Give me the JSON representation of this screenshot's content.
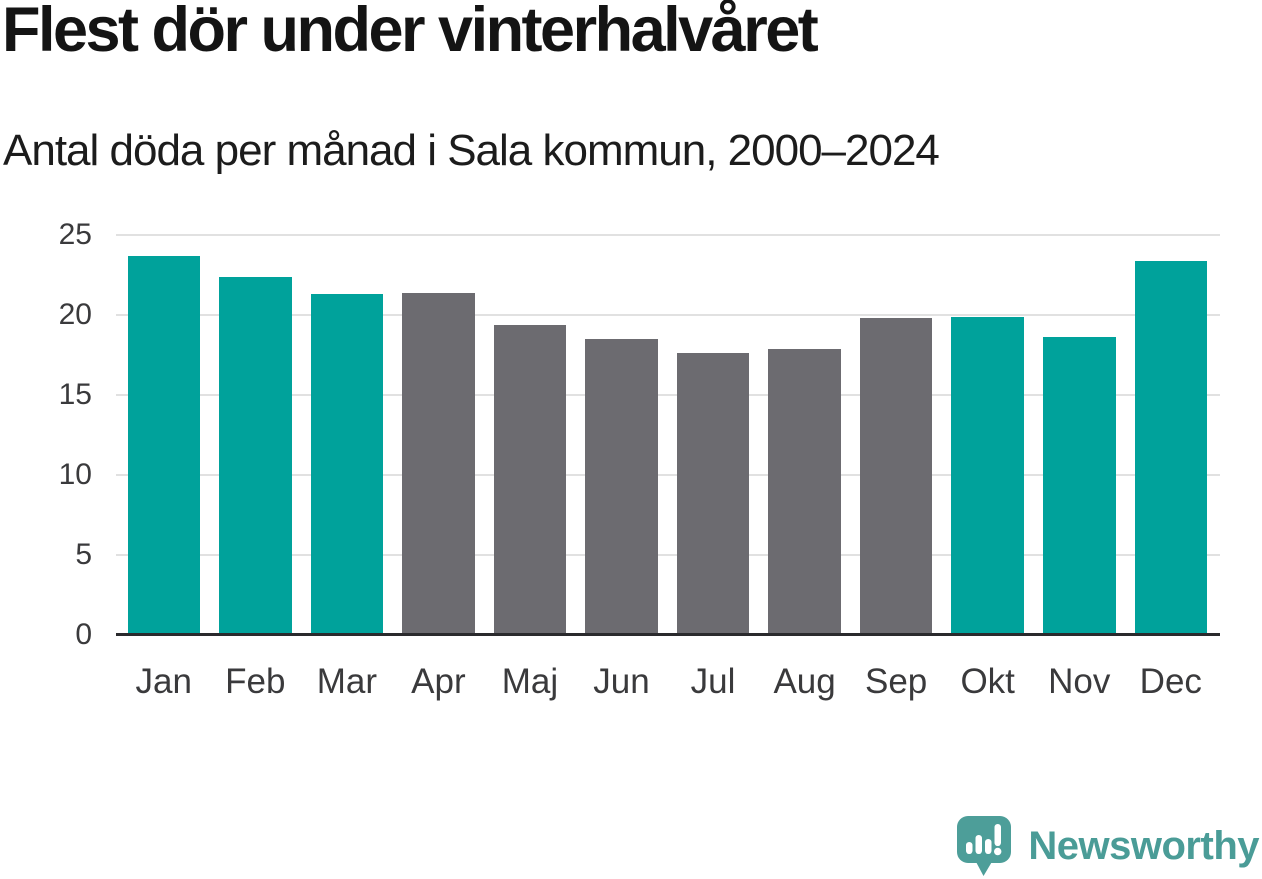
{
  "title": "Flest dör under vinterhalvåret",
  "subtitle": "Antal döda per månad i Sala kommun, 2000–2024",
  "chart_data": {
    "type": "bar",
    "title": "Flest dör under vinterhalvåret",
    "subtitle": "Antal döda per månad i Sala kommun, 2000–2024",
    "categories": [
      "Jan",
      "Feb",
      "Mar",
      "Apr",
      "Maj",
      "Jun",
      "Jul",
      "Aug",
      "Sep",
      "Okt",
      "Nov",
      "Dec"
    ],
    "values": [
      23.7,
      22.4,
      21.3,
      21.4,
      19.4,
      18.5,
      17.6,
      17.9,
      19.8,
      19.9,
      18.6,
      23.4
    ],
    "bar_seasons": [
      "winter",
      "winter",
      "winter",
      "summer",
      "summer",
      "summer",
      "summer",
      "summer",
      "summer",
      "winter",
      "winter",
      "winter"
    ],
    "colors": {
      "winter": "#00a29b",
      "summer": "#6c6b70"
    },
    "xlabel": "",
    "ylabel": "",
    "ylim": [
      0,
      25
    ],
    "yticks": [
      0,
      5,
      10,
      15,
      20,
      25
    ],
    "grid": "horizontal-only",
    "legend": "none"
  },
  "brand": {
    "name": "Newsworthy",
    "logo_color": "#4d9e99",
    "text_color": "#4a9c97"
  }
}
